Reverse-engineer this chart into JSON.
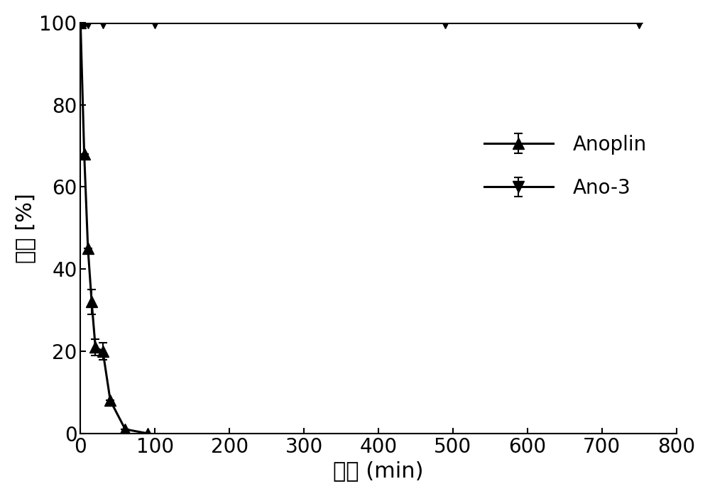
{
  "anoplin_x": [
    0,
    5,
    10,
    15,
    20,
    30,
    40,
    60,
    90
  ],
  "anoplin_y": [
    100,
    68,
    45,
    32,
    21,
    20,
    8,
    1,
    0
  ],
  "anoplin_yerr_lo": [
    0,
    0,
    0,
    3,
    2,
    2,
    0,
    0,
    0
  ],
  "anoplin_yerr_hi": [
    0,
    0,
    0,
    3,
    2,
    2,
    0,
    0,
    0
  ],
  "ano3_x": [
    0,
    2,
    5,
    10,
    30,
    100,
    490,
    750
  ],
  "ano3_y": [
    100,
    100,
    100,
    100,
    100,
    100,
    100,
    100
  ],
  "ano3_yerr_lo": [
    0,
    0,
    0,
    0,
    0,
    0,
    0,
    0
  ],
  "ano3_yerr_hi": [
    0,
    0,
    0,
    0,
    0,
    0,
    0,
    0
  ],
  "xlabel": "时间 (min)",
  "ylabel": "多肽 [%]",
  "xlim": [
    0,
    800
  ],
  "ylim": [
    0,
    100
  ],
  "xticks": [
    0,
    100,
    200,
    300,
    400,
    500,
    600,
    700,
    800
  ],
  "yticks": [
    0,
    20,
    40,
    60,
    80,
    100
  ],
  "legend_anoplin": "Anoplin",
  "legend_ano3": "Ano-3",
  "line_color": "#000000",
  "bg_color": "#ffffff",
  "marker_size": 11,
  "linewidth": 2.2,
  "xlabel_fontsize": 22,
  "ylabel_fontsize": 22,
  "tick_fontsize": 20,
  "legend_fontsize": 20
}
